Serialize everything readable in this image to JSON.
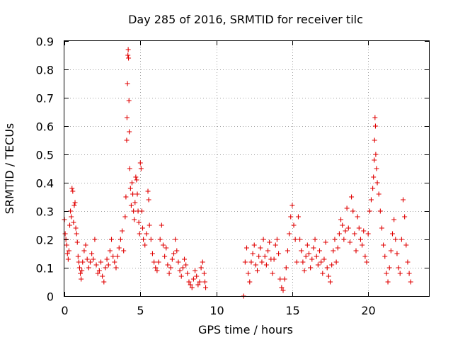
{
  "chart_data": {
    "type": "scatter",
    "title": "Day 285 of 2016, SRMTID for receiver tilc",
    "xlabel": "GPS time / hours",
    "ylabel": "SRMTID / TECUs",
    "xlim": [
      0,
      24
    ],
    "ylim": [
      0,
      0.9
    ],
    "xticks": [
      0,
      5,
      10,
      15,
      20
    ],
    "xtick_labels": [
      "0",
      "5",
      "10",
      "15",
      "20"
    ],
    "yticks": [
      0,
      0.1,
      0.2,
      0.3,
      0.4,
      0.5,
      0.6,
      0.7,
      0.8,
      0.9
    ],
    "ytick_labels": [
      "0",
      "0.1",
      "0.2",
      "0.3",
      "0.4",
      "0.5",
      "0.6",
      "0.7",
      "0.8",
      "0.9"
    ],
    "grid": true,
    "marker": "+",
    "color": "#e00000",
    "series": [
      {
        "name": "SRMTID",
        "points": [
          [
            0.0,
            0.27
          ],
          [
            0.05,
            0.22
          ],
          [
            0.1,
            0.2
          ],
          [
            0.15,
            0.18
          ],
          [
            0.2,
            0.15
          ],
          [
            0.25,
            0.13
          ],
          [
            0.3,
            0.16
          ],
          [
            0.35,
            0.25
          ],
          [
            0.4,
            0.3
          ],
          [
            0.45,
            0.28
          ],
          [
            0.5,
            0.38
          ],
          [
            0.55,
            0.37
          ],
          [
            0.6,
            0.26
          ],
          [
            0.65,
            0.32
          ],
          [
            0.7,
            0.33
          ],
          [
            0.75,
            0.24
          ],
          [
            0.8,
            0.22
          ],
          [
            0.85,
            0.19
          ],
          [
            0.9,
            0.14
          ],
          [
            0.95,
            0.12
          ],
          [
            1.0,
            0.1
          ],
          [
            1.05,
            0.08
          ],
          [
            1.1,
            0.06
          ],
          [
            1.15,
            0.09
          ],
          [
            1.2,
            0.12
          ],
          [
            1.3,
            0.16
          ],
          [
            1.4,
            0.18
          ],
          [
            1.5,
            0.13
          ],
          [
            1.6,
            0.1
          ],
          [
            1.7,
            0.12
          ],
          [
            1.8,
            0.15
          ],
          [
            1.9,
            0.13
          ],
          [
            2.0,
            0.2
          ],
          [
            2.1,
            0.11
          ],
          [
            2.2,
            0.08
          ],
          [
            2.3,
            0.09
          ],
          [
            2.4,
            0.12
          ],
          [
            2.5,
            0.07
          ],
          [
            2.6,
            0.05
          ],
          [
            2.7,
            0.1
          ],
          [
            2.8,
            0.13
          ],
          [
            2.9,
            0.11
          ],
          [
            3.0,
            0.16
          ],
          [
            3.1,
            0.2
          ],
          [
            3.2,
            0.14
          ],
          [
            3.3,
            0.12
          ],
          [
            3.4,
            0.1
          ],
          [
            3.5,
            0.14
          ],
          [
            3.6,
            0.17
          ],
          [
            3.7,
            0.2
          ],
          [
            3.8,
            0.23
          ],
          [
            3.9,
            0.16
          ],
          [
            4.0,
            0.28
          ],
          [
            4.05,
            0.35
          ],
          [
            4.1,
            0.55
          ],
          [
            4.12,
            0.63
          ],
          [
            4.15,
            0.75
          ],
          [
            4.18,
            0.85
          ],
          [
            4.2,
            0.87
          ],
          [
            4.22,
            0.84
          ],
          [
            4.25,
            0.69
          ],
          [
            4.27,
            0.58
          ],
          [
            4.3,
            0.45
          ],
          [
            4.35,
            0.38
          ],
          [
            4.4,
            0.32
          ],
          [
            4.45,
            0.4
          ],
          [
            4.5,
            0.36
          ],
          [
            4.55,
            0.3
          ],
          [
            4.6,
            0.27
          ],
          [
            4.65,
            0.33
          ],
          [
            4.7,
            0.42
          ],
          [
            4.75,
            0.41
          ],
          [
            4.8,
            0.36
          ],
          [
            4.85,
            0.3
          ],
          [
            4.9,
            0.26
          ],
          [
            4.95,
            0.22
          ],
          [
            5.0,
            0.47
          ],
          [
            5.05,
            0.45
          ],
          [
            5.1,
            0.3
          ],
          [
            5.15,
            0.24
          ],
          [
            5.2,
            0.2
          ],
          [
            5.3,
            0.18
          ],
          [
            5.4,
            0.22
          ],
          [
            5.5,
            0.37
          ],
          [
            5.55,
            0.34
          ],
          [
            5.6,
            0.25
          ],
          [
            5.7,
            0.2
          ],
          [
            5.8,
            0.15
          ],
          [
            5.9,
            0.12
          ],
          [
            6.0,
            0.1
          ],
          [
            6.1,
            0.09
          ],
          [
            6.2,
            0.12
          ],
          [
            6.3,
            0.2
          ],
          [
            6.4,
            0.25
          ],
          [
            6.5,
            0.18
          ],
          [
            6.6,
            0.14
          ],
          [
            6.7,
            0.17
          ],
          [
            6.8,
            0.11
          ],
          [
            6.9,
            0.08
          ],
          [
            7.0,
            0.1
          ],
          [
            7.1,
            0.13
          ],
          [
            7.2,
            0.15
          ],
          [
            7.3,
            0.2
          ],
          [
            7.4,
            0.16
          ],
          [
            7.5,
            0.12
          ],
          [
            7.6,
            0.09
          ],
          [
            7.7,
            0.07
          ],
          [
            7.8,
            0.1
          ],
          [
            7.9,
            0.13
          ],
          [
            8.0,
            0.11
          ],
          [
            8.1,
            0.08
          ],
          [
            8.2,
            0.05
          ],
          [
            8.3,
            0.04
          ],
          [
            8.4,
            0.03
          ],
          [
            8.5,
            0.06
          ],
          [
            8.6,
            0.09
          ],
          [
            8.7,
            0.07
          ],
          [
            8.8,
            0.04
          ],
          [
            8.9,
            0.05
          ],
          [
            9.0,
            0.1
          ],
          [
            9.1,
            0.12
          ],
          [
            9.2,
            0.08
          ],
          [
            9.25,
            0.05
          ],
          [
            9.3,
            0.03
          ],
          [
            11.8,
            0.0
          ],
          [
            11.9,
            0.12
          ],
          [
            12.0,
            0.17
          ],
          [
            12.1,
            0.08
          ],
          [
            12.2,
            0.05
          ],
          [
            12.3,
            0.12
          ],
          [
            12.4,
            0.15
          ],
          [
            12.5,
            0.18
          ],
          [
            12.6,
            0.11
          ],
          [
            12.7,
            0.09
          ],
          [
            12.8,
            0.14
          ],
          [
            12.9,
            0.17
          ],
          [
            13.0,
            0.12
          ],
          [
            13.1,
            0.2
          ],
          [
            13.2,
            0.14
          ],
          [
            13.3,
            0.11
          ],
          [
            13.4,
            0.16
          ],
          [
            13.5,
            0.19
          ],
          [
            13.6,
            0.13
          ],
          [
            13.7,
            0.08
          ],
          [
            13.8,
            0.13
          ],
          [
            13.9,
            0.18
          ],
          [
            14.0,
            0.2
          ],
          [
            14.1,
            0.15
          ],
          [
            14.2,
            0.06
          ],
          [
            14.3,
            0.03
          ],
          [
            14.4,
            0.02
          ],
          [
            14.5,
            0.06
          ],
          [
            14.6,
            0.1
          ],
          [
            14.7,
            0.16
          ],
          [
            14.8,
            0.22
          ],
          [
            14.9,
            0.28
          ],
          [
            15.0,
            0.32
          ],
          [
            15.1,
            0.25
          ],
          [
            15.2,
            0.2
          ],
          [
            15.3,
            0.12
          ],
          [
            15.4,
            0.28
          ],
          [
            15.5,
            0.2
          ],
          [
            15.6,
            0.16
          ],
          [
            15.7,
            0.12
          ],
          [
            15.8,
            0.09
          ],
          [
            15.9,
            0.14
          ],
          [
            16.0,
            0.18
          ],
          [
            16.1,
            0.15
          ],
          [
            16.2,
            0.1
          ],
          [
            16.3,
            0.13
          ],
          [
            16.4,
            0.17
          ],
          [
            16.5,
            0.2
          ],
          [
            16.6,
            0.14
          ],
          [
            16.7,
            0.11
          ],
          [
            16.8,
            0.16
          ],
          [
            16.9,
            0.12
          ],
          [
            17.0,
            0.08
          ],
          [
            17.1,
            0.13
          ],
          [
            17.2,
            0.19
          ],
          [
            17.3,
            0.1
          ],
          [
            17.4,
            0.07
          ],
          [
            17.5,
            0.05
          ],
          [
            17.6,
            0.11
          ],
          [
            17.7,
            0.16
          ],
          [
            17.8,
            0.2
          ],
          [
            17.9,
            0.12
          ],
          [
            18.0,
            0.17
          ],
          [
            18.1,
            0.22
          ],
          [
            18.2,
            0.27
          ],
          [
            18.3,
            0.25
          ],
          [
            18.4,
            0.2
          ],
          [
            18.5,
            0.23
          ],
          [
            18.6,
            0.31
          ],
          [
            18.7,
            0.24
          ],
          [
            18.8,
            0.19
          ],
          [
            18.9,
            0.35
          ],
          [
            19.0,
            0.3
          ],
          [
            19.1,
            0.22
          ],
          [
            19.2,
            0.16
          ],
          [
            19.3,
            0.28
          ],
          [
            19.4,
            0.24
          ],
          [
            19.5,
            0.2
          ],
          [
            19.6,
            0.18
          ],
          [
            19.7,
            0.23
          ],
          [
            19.8,
            0.14
          ],
          [
            19.9,
            0.12
          ],
          [
            20.0,
            0.22
          ],
          [
            20.1,
            0.3
          ],
          [
            20.2,
            0.34
          ],
          [
            20.3,
            0.38
          ],
          [
            20.35,
            0.42
          ],
          [
            20.4,
            0.48
          ],
          [
            20.42,
            0.55
          ],
          [
            20.45,
            0.63
          ],
          [
            20.48,
            0.6
          ],
          [
            20.5,
            0.5
          ],
          [
            20.55,
            0.45
          ],
          [
            20.6,
            0.4
          ],
          [
            20.7,
            0.36
          ],
          [
            20.8,
            0.3
          ],
          [
            20.9,
            0.24
          ],
          [
            21.0,
            0.18
          ],
          [
            21.1,
            0.14
          ],
          [
            21.2,
            0.08
          ],
          [
            21.3,
            0.05
          ],
          [
            21.4,
            0.1
          ],
          [
            21.5,
            0.16
          ],
          [
            21.6,
            0.22
          ],
          [
            21.7,
            0.27
          ],
          [
            21.8,
            0.2
          ],
          [
            21.9,
            0.15
          ],
          [
            22.0,
            0.1
          ],
          [
            22.1,
            0.08
          ],
          [
            22.2,
            0.2
          ],
          [
            22.3,
            0.34
          ],
          [
            22.4,
            0.28
          ],
          [
            22.5,
            0.18
          ],
          [
            22.6,
            0.12
          ],
          [
            22.7,
            0.08
          ],
          [
            22.8,
            0.05
          ]
        ]
      }
    ]
  }
}
